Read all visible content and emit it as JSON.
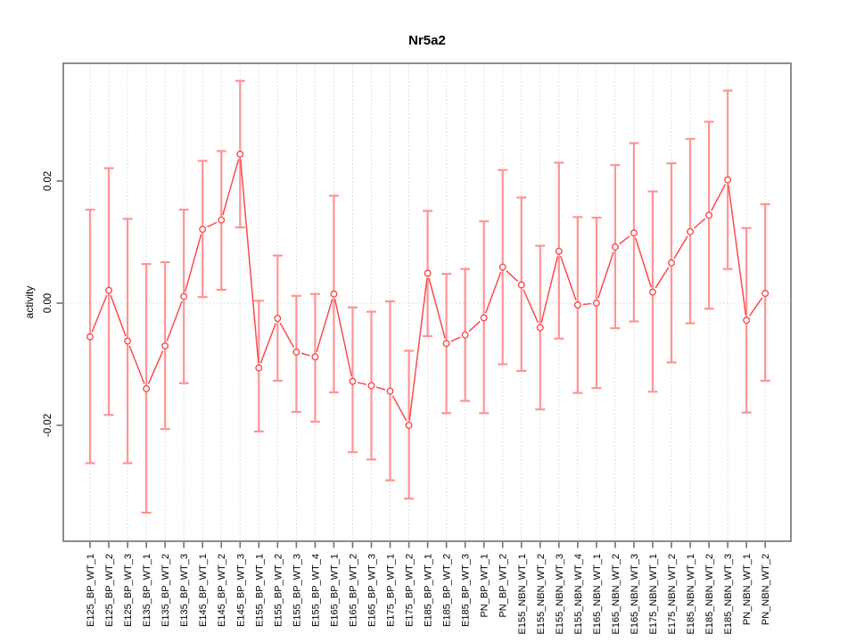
{
  "chart_data": {
    "type": "line",
    "subtype": "points-with-error-bars",
    "title": "Nr5a2",
    "xlabel": "",
    "ylabel": "activity",
    "y_ticks": [
      -0.02,
      0,
      0.02
    ],
    "y_tick_labels": [
      "-0.02",
      "0.00",
      "0.02"
    ],
    "ylim": [
      -0.039,
      0.0393
    ],
    "grid": "dotted vertical line per category plus dotted horizontal zero line",
    "legend": "none",
    "x_tick_label_rotation_deg": 90,
    "point_style": "open-circle",
    "colors": {
      "line_and_points": "#fb4b4b",
      "error_bars": "#ff9494",
      "gridlines": "#d8d8d8",
      "plot_border": "#8c8c8c",
      "axis_ticks": "#707070",
      "text": "#000000",
      "background": "#ffffff"
    },
    "categories": [
      "E125_BP_WT_1",
      "E125_BP_WT_2",
      "E125_BP_WT_3",
      "E135_BP_WT_1",
      "E135_BP_WT_2",
      "E135_BP_WT_3",
      "E145_BP_WT_1",
      "E145_BP_WT_2",
      "E145_BP_WT_3",
      "E155_BP_WT_1",
      "E155_BP_WT_2",
      "E155_BP_WT_3",
      "E155_BP_WT_4",
      "E165_BP_WT_1",
      "E165_BP_WT_2",
      "E165_BP_WT_3",
      "E175_BP_WT_1",
      "E175_BP_WT_2",
      "E185_BP_WT_1",
      "E185_BP_WT_2",
      "E185_BP_WT_3",
      "PN_BP_WT_1",
      "PN_BP_WT_2",
      "E155_NBN_WT_1",
      "E155_NBN_WT_2",
      "E155_NBN_WT_3",
      "E155_NBN_WT_4",
      "E165_NBN_WT_1",
      "E165_NBN_WT_2",
      "E165_NBN_WT_3",
      "E175_NBN_WT_1",
      "E175_NBN_WT_2",
      "E185_NBN_WT_1",
      "E185_NBN_WT_2",
      "E185_NBN_WT_3",
      "PN_NBN_WT_1",
      "PN_NBN_WT_2"
    ],
    "points": [
      {
        "label": "E125_BP_WT_1",
        "value": -0.0055,
        "lo": -0.0262,
        "hi": 0.0153
      },
      {
        "label": "E125_BP_WT_2",
        "value": 0.0021,
        "lo": -0.0183,
        "hi": 0.0221
      },
      {
        "label": "E125_BP_WT_3",
        "value": -0.0062,
        "lo": -0.0262,
        "hi": 0.0138
      },
      {
        "label": "E135_BP_WT_1",
        "value": -0.014,
        "lo": -0.0343,
        "hi": 0.0064
      },
      {
        "label": "E135_BP_WT_2",
        "value": -0.007,
        "lo": -0.0206,
        "hi": 0.0067
      },
      {
        "label": "E135_BP_WT_3",
        "value": 0.0011,
        "lo": -0.0131,
        "hi": 0.0153
      },
      {
        "label": "E145_BP_WT_1",
        "value": 0.0121,
        "lo": 0.001,
        "hi": 0.0233
      },
      {
        "label": "E145_BP_WT_2",
        "value": 0.0136,
        "lo": 0.0022,
        "hi": 0.0249
      },
      {
        "label": "E145_BP_WT_3",
        "value": 0.0244,
        "lo": 0.0124,
        "hi": 0.0364
      },
      {
        "label": "E155_BP_WT_1",
        "value": -0.0106,
        "lo": -0.021,
        "hi": 0.0004
      },
      {
        "label": "E155_BP_WT_2",
        "value": -0.0025,
        "lo": -0.0127,
        "hi": 0.0078
      },
      {
        "label": "E155_BP_WT_3",
        "value": -0.008,
        "lo": -0.0178,
        "hi": 0.0012
      },
      {
        "label": "E155_BP_WT_4",
        "value": -0.0088,
        "lo": -0.0194,
        "hi": 0.0015
      },
      {
        "label": "E165_BP_WT_1",
        "value": 0.0015,
        "lo": -0.0146,
        "hi": 0.0176
      },
      {
        "label": "E165_BP_WT_2",
        "value": -0.0128,
        "lo": -0.0244,
        "hi": -0.0007
      },
      {
        "label": "E165_BP_WT_3",
        "value": -0.0135,
        "lo": -0.0256,
        "hi": -0.0014
      },
      {
        "label": "E175_BP_WT_1",
        "value": -0.0144,
        "lo": -0.029,
        "hi": 0.0003
      },
      {
        "label": "E175_BP_WT_2",
        "value": -0.02,
        "lo": -0.032,
        "hi": -0.0078
      },
      {
        "label": "E185_BP_WT_1",
        "value": 0.0049,
        "lo": -0.0054,
        "hi": 0.0151
      },
      {
        "label": "E185_BP_WT_2",
        "value": -0.0066,
        "lo": -0.018,
        "hi": 0.0048
      },
      {
        "label": "E185_BP_WT_3",
        "value": -0.0052,
        "lo": -0.016,
        "hi": 0.0056
      },
      {
        "label": "PN_BP_WT_1",
        "value": -0.0024,
        "lo": -0.018,
        "hi": 0.0134
      },
      {
        "label": "PN_BP_WT_2",
        "value": 0.0059,
        "lo": -0.01,
        "hi": 0.0218
      },
      {
        "label": "E155_NBN_WT_1",
        "value": 0.003,
        "lo": -0.0111,
        "hi": 0.0173
      },
      {
        "label": "E155_NBN_WT_2",
        "value": -0.004,
        "lo": -0.0174,
        "hi": 0.0094
      },
      {
        "label": "E155_NBN_WT_3",
        "value": 0.0085,
        "lo": -0.0058,
        "hi": 0.023
      },
      {
        "label": "E155_NBN_WT_4",
        "value": -0.0003,
        "lo": -0.0147,
        "hi": 0.0141
      },
      {
        "label": "E165_NBN_WT_1",
        "value": 0.0,
        "lo": -0.0139,
        "hi": 0.014
      },
      {
        "label": "E165_NBN_WT_2",
        "value": 0.0092,
        "lo": -0.0041,
        "hi": 0.0226
      },
      {
        "label": "E165_NBN_WT_3",
        "value": 0.0115,
        "lo": -0.003,
        "hi": 0.0262
      },
      {
        "label": "E175_NBN_WT_1",
        "value": 0.0018,
        "lo": -0.0145,
        "hi": 0.0183
      },
      {
        "label": "E175_NBN_WT_2",
        "value": 0.0066,
        "lo": -0.0097,
        "hi": 0.0229
      },
      {
        "label": "E185_NBN_WT_1",
        "value": 0.0117,
        "lo": -0.0033,
        "hi": 0.0269
      },
      {
        "label": "E185_NBN_WT_2",
        "value": 0.0144,
        "lo": -0.0009,
        "hi": 0.0297
      },
      {
        "label": "E185_NBN_WT_3",
        "value": 0.0202,
        "lo": 0.0056,
        "hi": 0.0348
      },
      {
        "label": "PN_NBN_WT_1",
        "value": -0.0028,
        "lo": -0.0179,
        "hi": 0.0123
      },
      {
        "label": "PN_NBN_WT_2",
        "value": 0.0016,
        "lo": -0.0127,
        "hi": 0.0162
      }
    ]
  }
}
